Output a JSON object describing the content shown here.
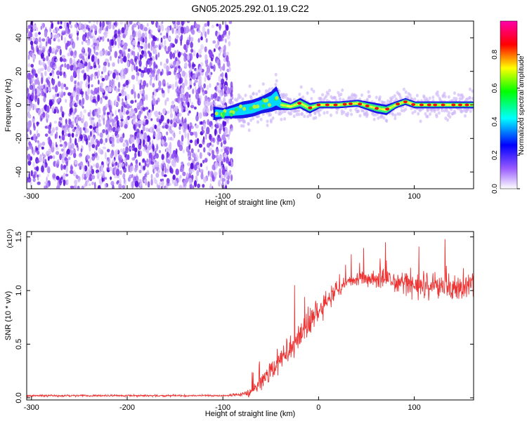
{
  "title": "GN05.2025.292.01.19.C22",
  "chart_data": [
    {
      "type": "heatmap",
      "name": "spectrogram",
      "title": "GN05.2025.292.01.19.C22",
      "xlabel": "Height of straight line (km)",
      "ylabel": "Frequency (Hz)",
      "xlim": [
        -305,
        162
      ],
      "ylim": [
        -50,
        50
      ],
      "xticks": [
        -300,
        -200,
        -100,
        0,
        100
      ],
      "yticks": [
        -40,
        -20,
        0,
        20,
        40
      ],
      "colorbar": {
        "label": "Normalized spectral amplitude",
        "range": [
          0,
          1
        ],
        "ticks": [
          "0.0",
          "0.2",
          "0.4",
          "0.6",
          "0.8"
        ],
        "colors": [
          "#ff00ff",
          "#ff0000",
          "#ffff00",
          "#00ff00",
          "#00ffff",
          "#0000ff",
          "#9a5cff",
          "#ffffff"
        ]
      },
      "regions": [
        {
          "label": "noise",
          "x_range": [
            -305,
            -100
          ],
          "y_range": [
            -50,
            50
          ],
          "amplitude_range": [
            0.05,
            0.3
          ]
        },
        {
          "label": "signal ridge",
          "x_range": [
            -110,
            162
          ],
          "center_freq_hz": 0,
          "amplitude_range": [
            0.4,
            1.0
          ]
        }
      ],
      "ridge": {
        "x": [
          -110,
          -100,
          -90,
          -80,
          -70,
          -60,
          -50,
          -45,
          -40,
          -30,
          -20,
          -10,
          0,
          20,
          40,
          60,
          70,
          80,
          90,
          100,
          120,
          140,
          162
        ],
        "center": [
          -5,
          -5,
          -4,
          -3,
          -2,
          0,
          2,
          4,
          0,
          -1,
          1,
          -2,
          0,
          0,
          1,
          -2,
          -3,
          0,
          2,
          0,
          0,
          0,
          0
        ],
        "halfwidth": [
          4,
          3,
          4,
          5,
          5,
          5,
          6,
          7,
          3,
          2,
          3,
          3,
          2,
          2,
          2,
          3,
          3,
          2,
          2,
          2,
          2,
          2,
          2
        ]
      },
      "color": "#6a1bd8"
    },
    {
      "type": "line",
      "name": "snr",
      "xlabel": "Height of straight line (km)",
      "ylabel": "SNR (10 * v/v)",
      "scale_note": "(x10⁴)",
      "xlim": [
        -305,
        162
      ],
      "ylim": [
        -0.02,
        1.55
      ],
      "xticks": [
        -300,
        -200,
        -100,
        0,
        100
      ],
      "yticks": [
        "0.0",
        "0.5",
        "1.0",
        "1.5"
      ],
      "series": [
        {
          "name": "SNR",
          "color": "#ee3333",
          "x": [
            -305,
            -250,
            -200,
            -150,
            -100,
            -80,
            -70,
            -60,
            -50,
            -40,
            -30,
            -20,
            -10,
            0,
            10,
            20,
            30,
            40,
            60,
            80,
            100,
            120,
            140,
            162
          ],
          "base": [
            0.02,
            0.02,
            0.02,
            0.02,
            0.02,
            0.03,
            0.06,
            0.15,
            0.25,
            0.35,
            0.45,
            0.55,
            0.7,
            0.8,
            0.92,
            1.02,
            1.07,
            1.1,
            1.1,
            1.08,
            1.05,
            1.05,
            1.03,
            1.05
          ],
          "noise": [
            0.01,
            0.01,
            0.01,
            0.01,
            0.01,
            0.02,
            0.05,
            0.1,
            0.12,
            0.15,
            0.16,
            0.16,
            0.16,
            0.14,
            0.12,
            0.1,
            0.07,
            0.07,
            0.1,
            0.12,
            0.12,
            0.14,
            0.14,
            0.15
          ]
        }
      ],
      "peaks": [
        {
          "x": -25,
          "y": 1.05
        },
        {
          "x": 70,
          "y": 1.45
        },
        {
          "x": 105,
          "y": 1.41
        },
        {
          "x": 132,
          "y": 1.48
        }
      ]
    }
  ]
}
